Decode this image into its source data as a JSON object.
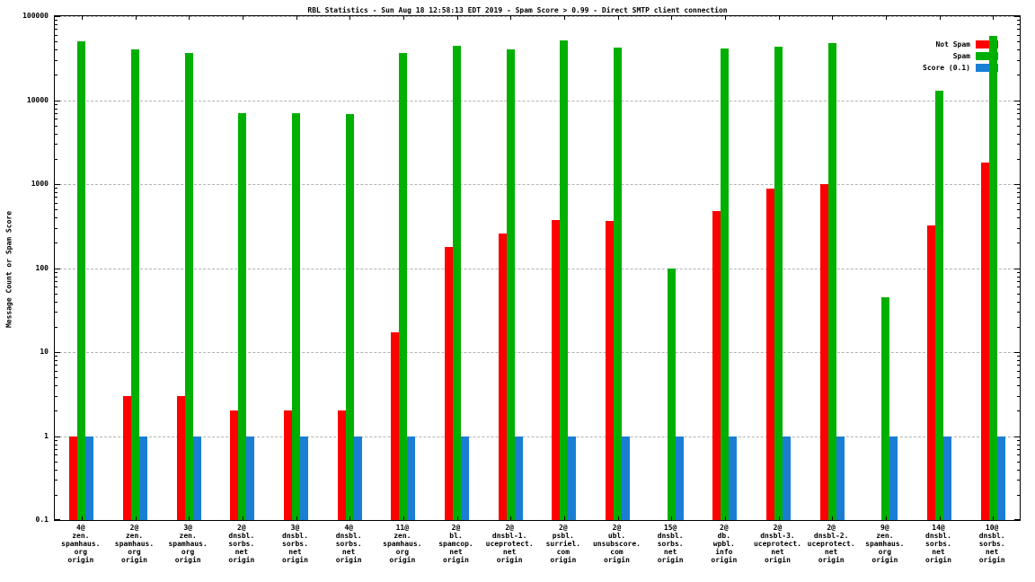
{
  "colors": {
    "not_spam": "#ff0000",
    "spam": "#00b000",
    "score": "#1a7fd4",
    "grid": "#b3b3b3",
    "border": "#000000"
  },
  "legend": [
    {
      "label": "Not Spam",
      "series": "not_spam"
    },
    {
      "label": "Spam",
      "series": "spam"
    },
    {
      "label": "Score (0.1)",
      "series": "score"
    }
  ],
  "yticks": {
    "labels": [
      "0.1",
      "1",
      "10",
      "100",
      "1000",
      "10000",
      "100000"
    ],
    "values": [
      0.1,
      1,
      10,
      100,
      1000,
      10000,
      100000
    ]
  },
  "chart_data": {
    "type": "bar",
    "title": "RBL Statistics - Sun Aug 18 12:58:13 EDT 2019 - Spam Score > 0.99 - Direct SMTP client connection",
    "ylabel": "Message Count or Spam Score",
    "xlabel": "",
    "log_y": true,
    "ylim": [
      0.1,
      100000
    ],
    "grid": "horizontal-dashed",
    "legend_position": "top-right-inside",
    "categories": [
      [
        "4@",
        "zen.",
        "spamhaus.",
        "org",
        "origin"
      ],
      [
        "2@",
        "zen.",
        "spamhaus.",
        "org",
        "origin"
      ],
      [
        "3@",
        "zen.",
        "spamhaus.",
        "org",
        "origin"
      ],
      [
        "2@",
        "dnsbl.",
        "sorbs.",
        "net",
        "origin"
      ],
      [
        "3@",
        "dnsbl.",
        "sorbs.",
        "net",
        "origin"
      ],
      [
        "4@",
        "dnsbl.",
        "sorbs.",
        "net",
        "origin"
      ],
      [
        "11@",
        "zen.",
        "spamhaus.",
        "org",
        "origin"
      ],
      [
        "2@",
        "bl.",
        "spamcop.",
        "net",
        "origin"
      ],
      [
        "2@",
        "dnsbl-1.",
        "uceprotect.",
        "net",
        "origin"
      ],
      [
        "2@",
        "psbl.",
        "surriel.",
        "com",
        "origin"
      ],
      [
        "2@",
        "ubl.",
        "unsubscore.",
        "com",
        "origin"
      ],
      [
        "15@",
        "dnsbl.",
        "sorbs.",
        "net",
        "origin"
      ],
      [
        "2@",
        "db.",
        "wpbl.",
        "info",
        "origin"
      ],
      [
        "2@",
        "dnsbl-3.",
        "uceprotect.",
        "net",
        "origin"
      ],
      [
        "2@",
        "dnsbl-2.",
        "uceprotect.",
        "net",
        "origin"
      ],
      [
        "9@",
        "zen.",
        "spamhaus.",
        "org",
        "origin"
      ],
      [
        "14@",
        "dnsbl.",
        "sorbs.",
        "net",
        "origin"
      ],
      [
        "10@",
        "dnsbl.",
        "sorbs.",
        "net",
        "origin"
      ]
    ],
    "series": [
      {
        "name": "Not Spam",
        "color_key": "not_spam",
        "values": [
          1,
          3,
          3,
          2,
          2,
          2,
          17,
          180,
          260,
          370,
          360,
          null,
          480,
          880,
          1000,
          null,
          320,
          1800
        ]
      },
      {
        "name": "Spam",
        "color_key": "spam",
        "values": [
          50000,
          40000,
          36000,
          7000,
          7000,
          6800,
          36000,
          44000,
          40000,
          52000,
          42000,
          100,
          41000,
          43000,
          48000,
          45,
          13000,
          58000
        ]
      },
      {
        "name": "Score (0.1)",
        "color_key": "score",
        "values": [
          1,
          1,
          1,
          1,
          1,
          1,
          1,
          1,
          1,
          1,
          1,
          1,
          1,
          1,
          1,
          1,
          1,
          1
        ]
      }
    ]
  }
}
